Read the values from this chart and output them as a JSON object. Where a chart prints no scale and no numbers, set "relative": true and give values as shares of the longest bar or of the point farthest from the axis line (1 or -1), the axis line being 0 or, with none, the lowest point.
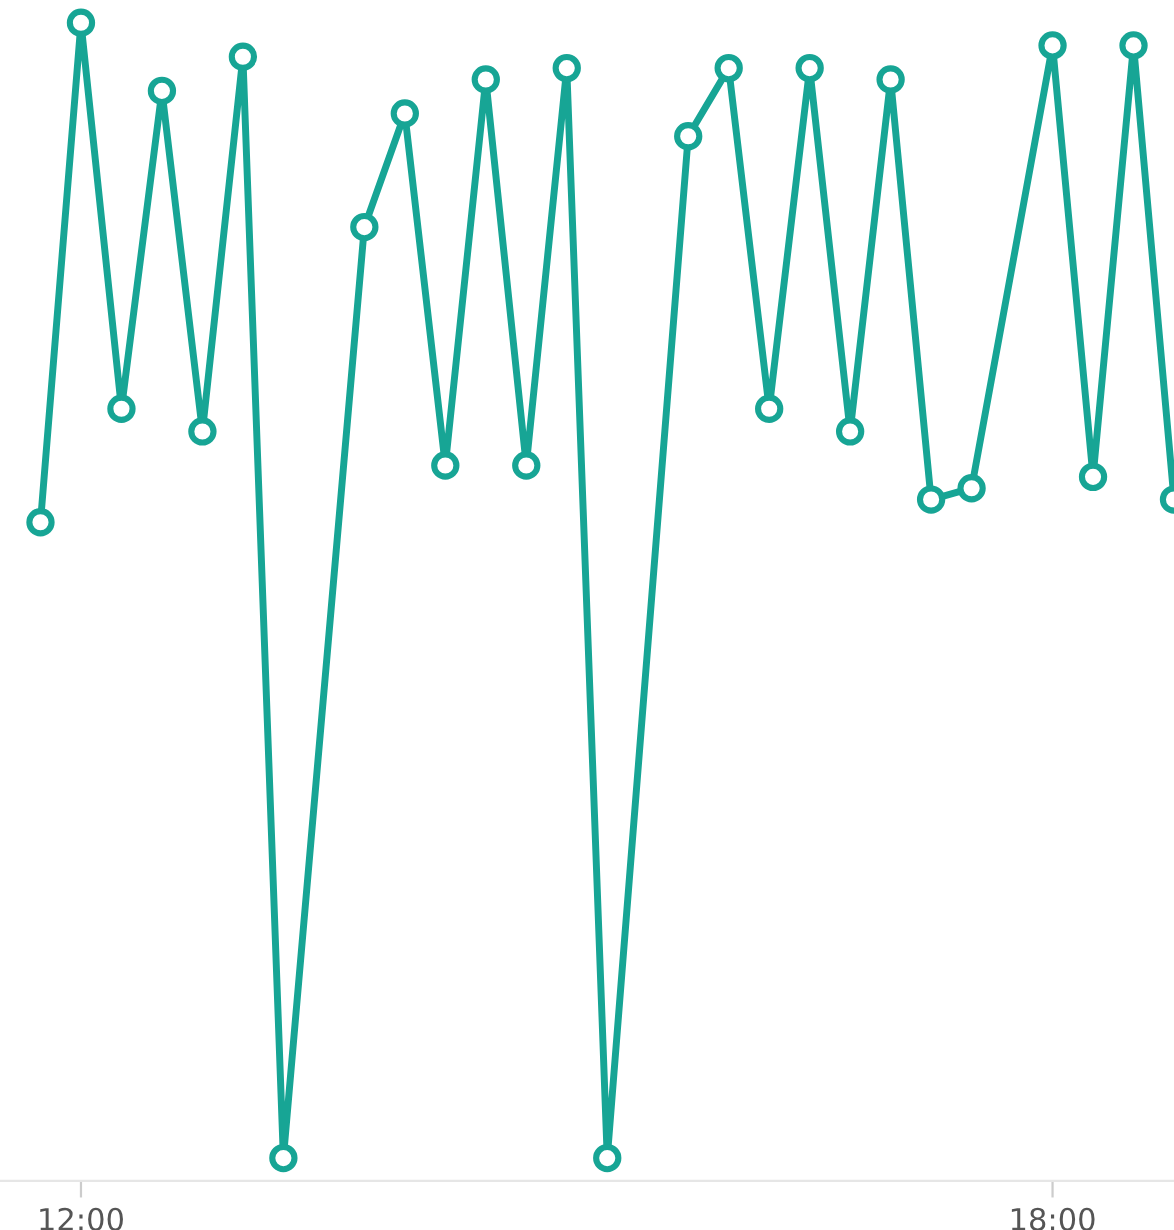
{
  "chart_data": {
    "type": "line",
    "relative": true,
    "x": [
      11.75,
      12.0,
      12.25,
      12.5,
      12.75,
      13.0,
      13.25,
      13.75,
      14.0,
      14.25,
      14.5,
      14.75,
      15.0,
      15.25,
      15.75,
      16.0,
      16.25,
      16.5,
      16.75,
      17.0,
      17.25,
      17.5,
      18.0,
      18.25,
      18.5,
      18.75
    ],
    "series": [
      {
        "color": "#17a595",
        "values": [
          0.56,
          1.0,
          0.66,
          0.94,
          0.64,
          0.97,
          0.0,
          0.82,
          0.92,
          0.61,
          0.95,
          0.61,
          0.96,
          0.0,
          0.9,
          0.96,
          0.66,
          0.96,
          0.64,
          0.95,
          0.58,
          0.59,
          0.98,
          0.6,
          0.98,
          0.58
        ]
      }
    ],
    "xlim": [
      11.5,
      18.75
    ],
    "xticks": [
      {
        "value": 12,
        "label": "12:00"
      },
      {
        "value": 18,
        "label": "18:00"
      }
    ],
    "marker": "circle",
    "line_style": "solid",
    "grid": false,
    "legend": false
  }
}
